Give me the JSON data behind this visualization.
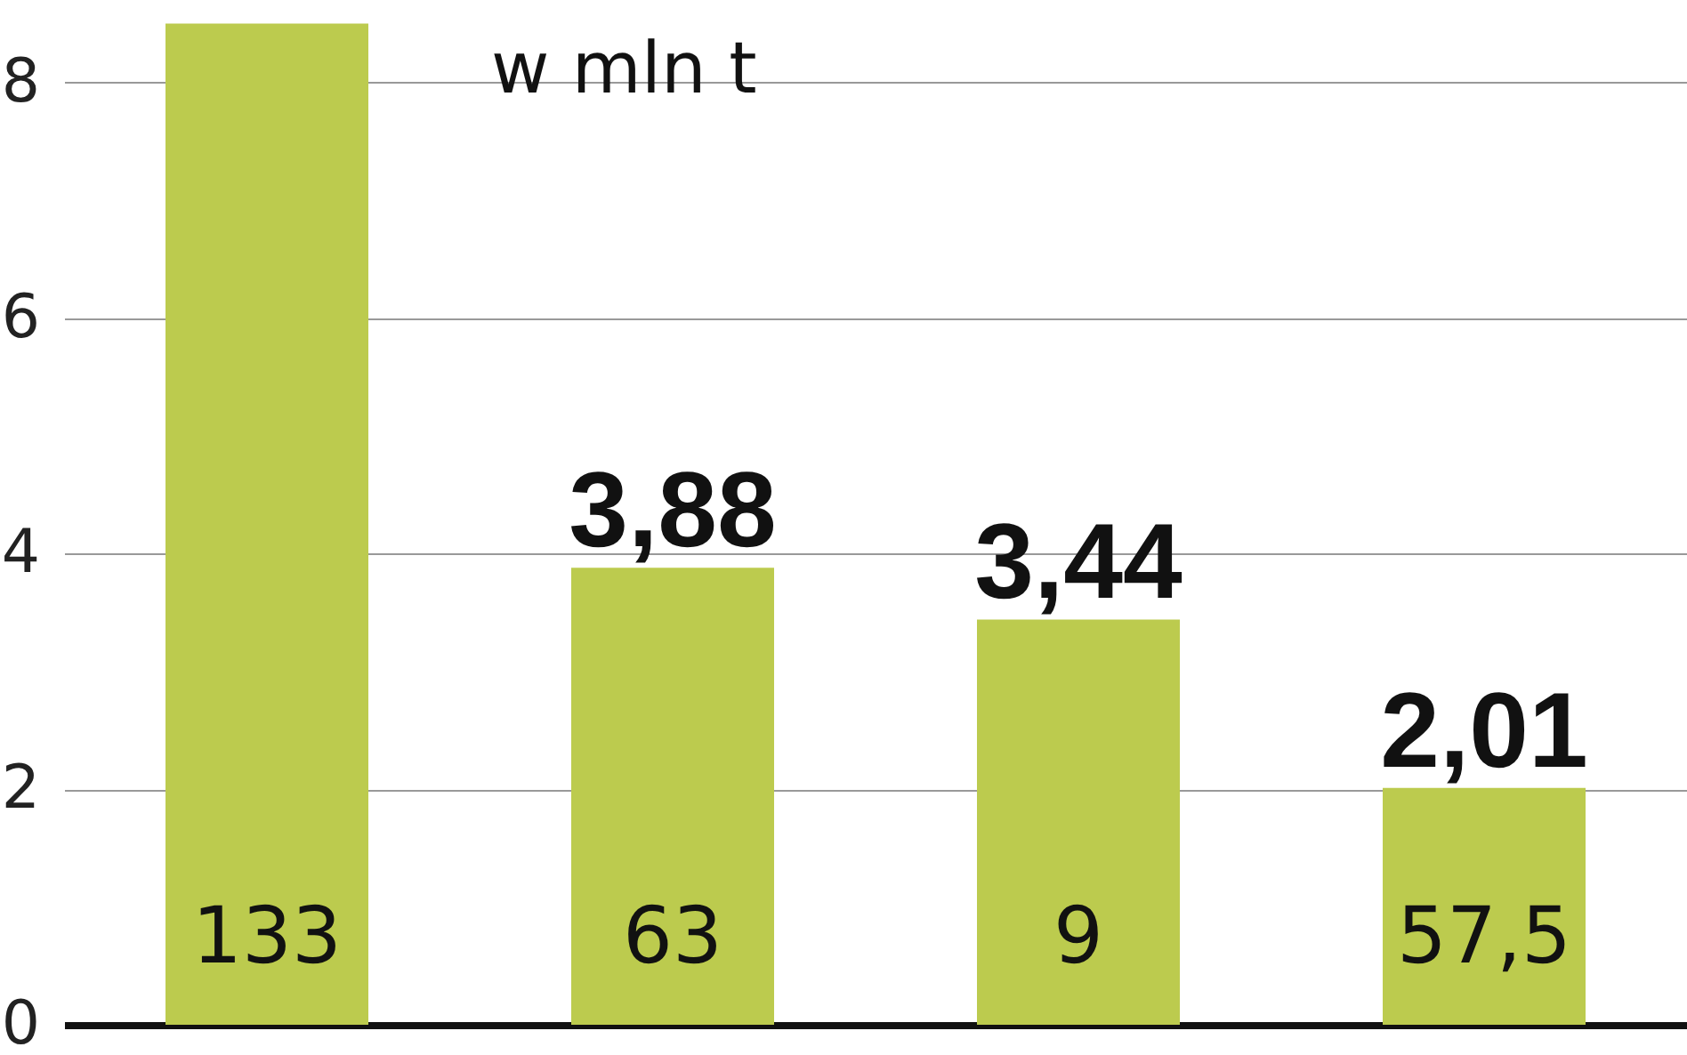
{
  "chart_data": {
    "type": "bar",
    "categories": [
      null,
      null,
      null,
      null
    ],
    "values": [
      8.5,
      3.88,
      3.44,
      2.01
    ],
    "value_labels": [
      null,
      "3,88",
      "3,44",
      "2,01"
    ],
    "color": "#bccb4e",
    "ylim": [
      0,
      8.7
    ],
    "yticks": [
      0,
      2,
      4,
      6,
      8
    ],
    "grid": "y",
    "annotations": [
      "w mln t",
      "133",
      "63",
      "9",
      "57,5"
    ]
  }
}
